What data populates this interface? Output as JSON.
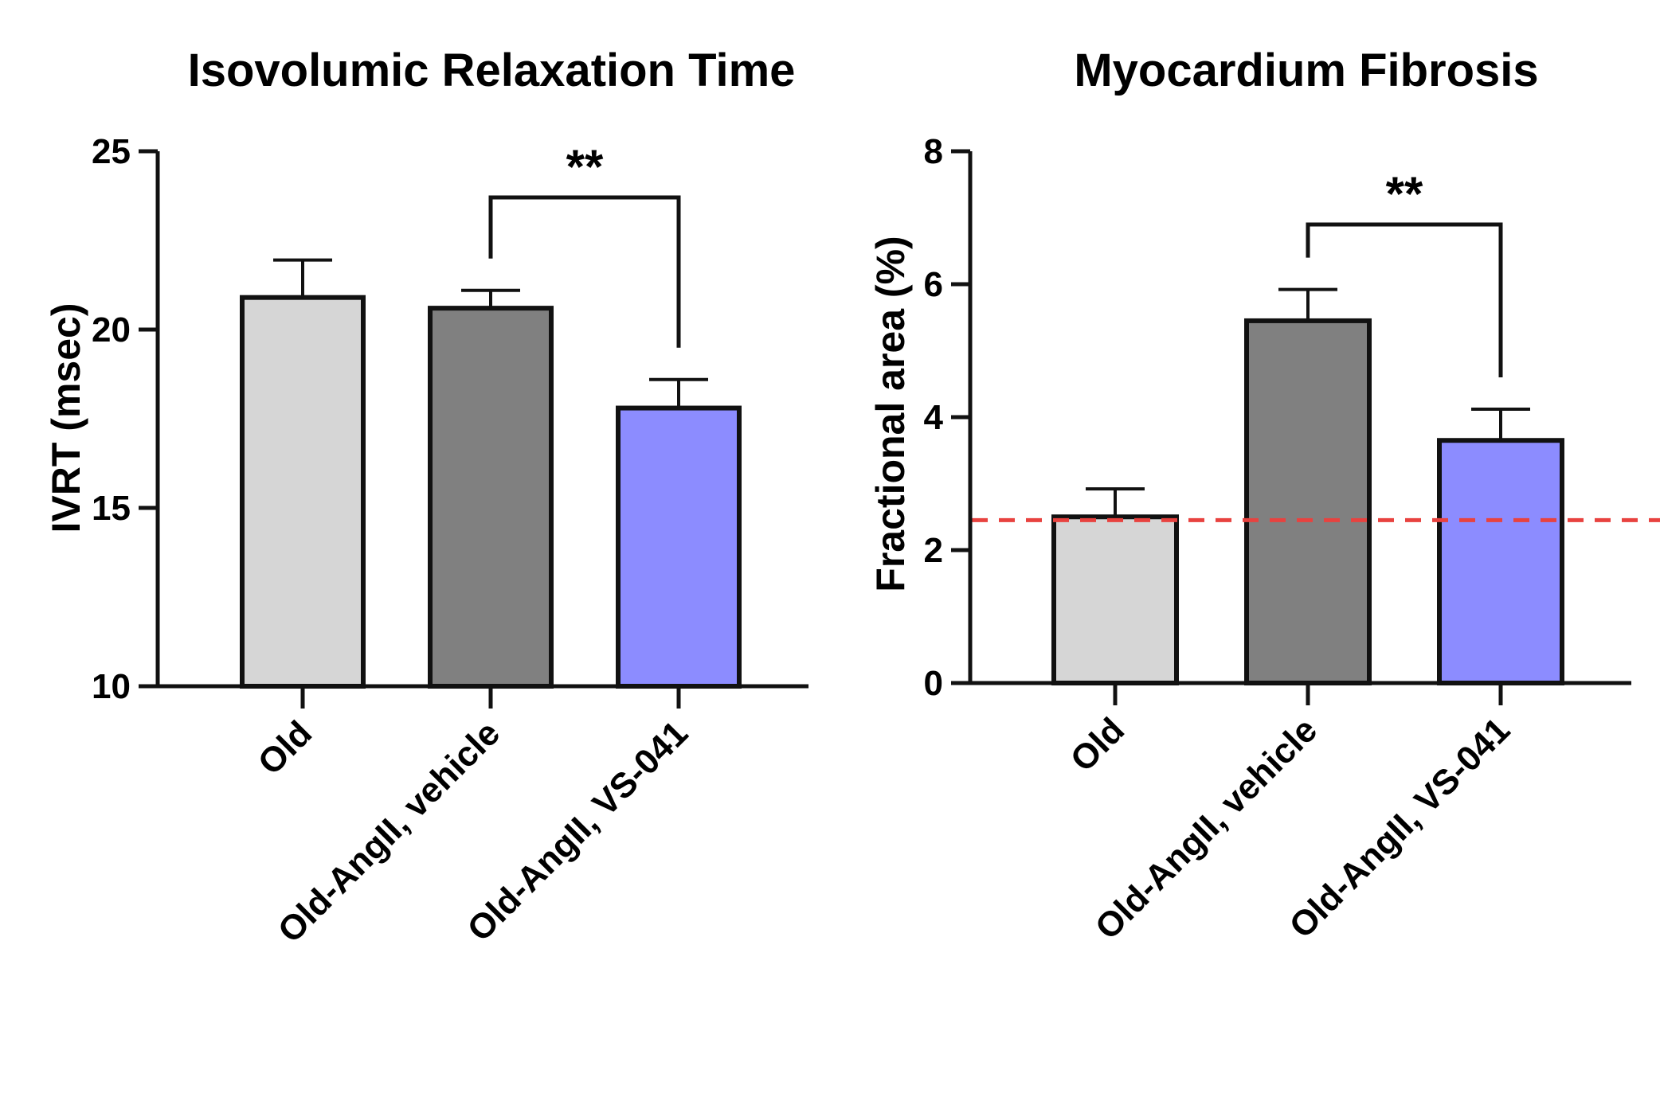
{
  "chart_data": [
    {
      "type": "bar",
      "title": "Isovolumic Relaxation Time",
      "xlabel": "",
      "ylabel": "IVRT (msec)",
      "ylim": [
        10,
        25
      ],
      "yticks": [
        10,
        15,
        20,
        25
      ],
      "categories": [
        "Old",
        "Old-AngII, vehicle",
        "Old-AngII, VS-041"
      ],
      "values": [
        20.9,
        20.6,
        17.8
      ],
      "errors": [
        1.05,
        0.5,
        0.8
      ],
      "colors": [
        "#d6d6d6",
        "#808080",
        "#8c8cff"
      ],
      "significance": [
        {
          "from": 1,
          "to": 2,
          "label": "**"
        }
      ]
    },
    {
      "type": "bar",
      "title": "Myocardium Fibrosis",
      "xlabel": "",
      "ylabel": "Fractional area (%)",
      "ylim": [
        0,
        8
      ],
      "yticks": [
        0,
        2,
        4,
        6,
        8
      ],
      "categories": [
        "Old",
        "Old-AngII, vehicle",
        "Old-AngII, VS-041"
      ],
      "values": [
        2.5,
        5.45,
        3.65
      ],
      "errors": [
        0.42,
        0.47,
        0.47
      ],
      "colors": [
        "#d6d6d6",
        "#808080",
        "#8c8cff"
      ],
      "reference_line": {
        "y": 2.45,
        "color": "#e8423f",
        "style": "dashed"
      },
      "significance": [
        {
          "from": 1,
          "to": 2,
          "label": "**"
        }
      ]
    }
  ]
}
